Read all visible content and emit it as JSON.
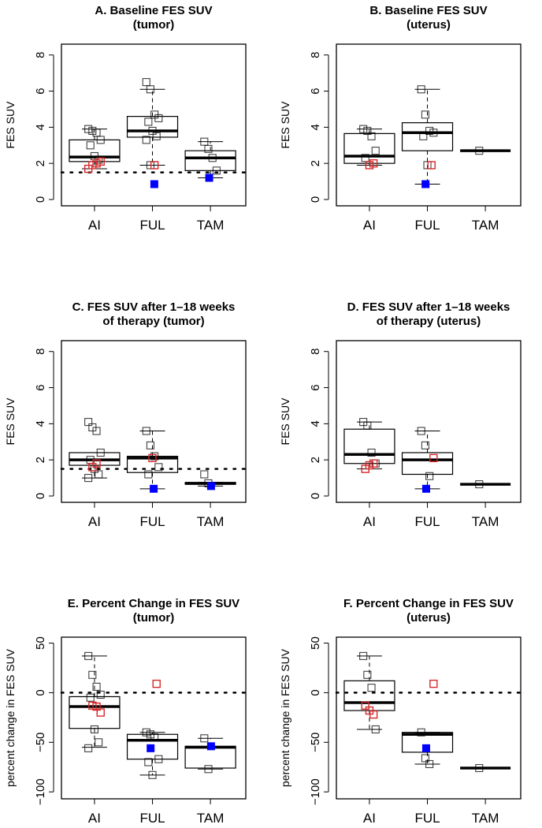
{
  "colors": {
    "default": "#000000",
    "red": "#d62728",
    "blue": "#0000ff",
    "line": "#000000"
  },
  "chart_data": [
    {
      "type": "boxplot",
      "title": [
        "A.  Baseline FES SUV",
        "(tumor)"
      ],
      "ylabel": "FES SUV",
      "ylim": [
        -0.35,
        8.6
      ],
      "yticks": [
        "0",
        "2",
        "4",
        "6",
        "8"
      ],
      "ytick_values": [
        0,
        2,
        4,
        6,
        8
      ],
      "reference_line": 1.5,
      "categories": [
        "AI",
        "FUL",
        "TAM"
      ],
      "groups": [
        {
          "box": [
            1.7,
            2.1,
            2.35,
            3.3,
            3.9
          ],
          "black": [
            3.9,
            3.8,
            3.7,
            3.3,
            3.0,
            2.4,
            2.2
          ],
          "red": [
            1.7,
            1.9,
            2.0,
            2.1
          ],
          "blue": []
        },
        {
          "box": [
            1.9,
            3.45,
            3.8,
            4.6,
            6.1
          ],
          "black": [
            6.5,
            6.1,
            4.7,
            4.5,
            4.3,
            3.8,
            3.5,
            3.3,
            1.9
          ],
          "red": [
            1.9
          ],
          "blue": [
            0.85
          ]
        },
        {
          "box": [
            1.2,
            1.6,
            2.3,
            2.7,
            3.2
          ],
          "black": [
            3.2,
            2.8,
            2.3,
            1.6
          ],
          "red": [],
          "blue": [
            1.2
          ]
        }
      ]
    },
    {
      "type": "boxplot",
      "title": [
        "B.  Baseline FES SUV",
        "(uterus)"
      ],
      "ylabel": "FES SUV",
      "ylim": [
        -0.35,
        8.6
      ],
      "yticks": [
        "0",
        "2",
        "4",
        "6",
        "8"
      ],
      "ytick_values": [
        0,
        2,
        4,
        6,
        8
      ],
      "reference_line": null,
      "categories": [
        "AI",
        "FUL",
        "TAM"
      ],
      "groups": [
        {
          "box": [
            1.9,
            2.0,
            2.4,
            3.65,
            3.9
          ],
          "black": [
            3.9,
            3.8,
            3.5,
            2.7,
            2.3
          ],
          "red": [
            1.9,
            2.0
          ],
          "blue": []
        },
        {
          "box": [
            0.85,
            2.7,
            3.7,
            4.25,
            6.1
          ],
          "black": [
            6.1,
            4.7,
            3.8,
            3.7,
            3.5,
            1.9
          ],
          "red": [
            1.9
          ],
          "blue": [
            0.85
          ]
        },
        {
          "box": [
            2.7,
            2.7,
            2.7,
            2.7,
            2.7
          ],
          "black": [
            2.7
          ],
          "red": [],
          "blue": []
        }
      ]
    },
    {
      "type": "boxplot",
      "title": [
        "C. FES SUV after 1–18 weeks",
        "of therapy (tumor)"
      ],
      "ylabel": "FES SUV",
      "ylim": [
        -0.35,
        8.6
      ],
      "yticks": [
        "0",
        "2",
        "4",
        "6",
        "8"
      ],
      "ytick_values": [
        0,
        2,
        4,
        6,
        8
      ],
      "reference_line": 1.5,
      "categories": [
        "AI",
        "FUL",
        "TAM"
      ],
      "groups": [
        {
          "box": [
            1.0,
            1.7,
            2.0,
            2.4,
            2.4
          ],
          "black": [
            4.1,
            3.8,
            3.6,
            2.4,
            2.0,
            1.5,
            1.2,
            1.0
          ],
          "red": [
            1.6,
            1.8
          ],
          "blue": []
        },
        {
          "box": [
            0.4,
            1.3,
            2.1,
            2.2,
            3.6
          ],
          "black": [
            3.6,
            2.8,
            2.2,
            1.6,
            1.2
          ],
          "red": [
            2.1
          ],
          "blue": [
            0.4
          ]
        },
        {
          "box": [
            0.55,
            0.65,
            0.7,
            0.75,
            0.75
          ],
          "black": [
            1.2,
            0.7
          ],
          "red": [],
          "blue": [
            0.55
          ]
        }
      ]
    },
    {
      "type": "boxplot",
      "title": [
        "D. FES SUV after 1–18 weeks",
        "of therapy (uterus)"
      ],
      "ylabel": "FES SUV",
      "ylim": [
        -0.35,
        8.6
      ],
      "yticks": [
        "0",
        "2",
        "4",
        "6",
        "8"
      ],
      "ytick_values": [
        0,
        2,
        4,
        6,
        8
      ],
      "reference_line": null,
      "categories": [
        "AI",
        "FUL",
        "TAM"
      ],
      "groups": [
        {
          "box": [
            1.5,
            1.8,
            2.3,
            3.7,
            4.1
          ],
          "black": [
            4.1,
            3.9,
            2.4,
            1.8
          ],
          "red": [
            1.5,
            1.7,
            1.8
          ],
          "blue": []
        },
        {
          "box": [
            0.4,
            1.2,
            2.0,
            2.4,
            3.6
          ],
          "black": [
            3.6,
            2.8,
            1.1
          ],
          "red": [
            2.1
          ],
          "blue": [
            0.4
          ]
        },
        {
          "box": [
            0.65,
            0.65,
            0.65,
            0.65,
            0.65
          ],
          "black": [
            0.65
          ],
          "red": [],
          "blue": []
        }
      ]
    },
    {
      "type": "boxplot",
      "title": [
        "E. Percent Change in FES SUV",
        "(tumor)"
      ],
      "ylabel": "percent change in FES SUV",
      "ylim": [
        -107,
        56
      ],
      "yticks": [
        "−100",
        "−50",
        "0",
        "50"
      ],
      "ytick_values": [
        -100,
        -50,
        0,
        50
      ],
      "reference_line": 0,
      "categories": [
        "AI",
        "FUL",
        "TAM"
      ],
      "groups": [
        {
          "box": [
            -55,
            -36,
            -14,
            -4,
            37
          ],
          "black": [
            37,
            18,
            6,
            -2,
            -5,
            -37,
            -50,
            -56
          ],
          "red": [
            -13,
            -14,
            -20
          ],
          "blue": []
        },
        {
          "box": [
            -83,
            -67,
            -48,
            -42,
            -40
          ],
          "black": [
            -40,
            -42,
            -45,
            -67,
            -70,
            -83
          ],
          "red": [
            9
          ],
          "blue": [
            -56
          ]
        },
        {
          "box": [
            -77,
            -76,
            -55,
            -54,
            -46
          ],
          "black": [
            -46,
            -77
          ],
          "red": [],
          "blue": [
            -54
          ]
        }
      ]
    },
    {
      "type": "boxplot",
      "title": [
        "F. Percent Change in FES SUV",
        "(uterus)"
      ],
      "ylabel": "percent change in FES SUV",
      "ylim": [
        -107,
        56
      ],
      "yticks": [
        "−100",
        "−50",
        "0",
        "50"
      ],
      "ytick_values": [
        -100,
        -50,
        0,
        50
      ],
      "reference_line": 0,
      "categories": [
        "AI",
        "FUL",
        "TAM"
      ],
      "groups": [
        {
          "box": [
            -37,
            -18,
            -10,
            12,
            37
          ],
          "black": [
            37,
            18,
            5,
            -37
          ],
          "red": [
            -13,
            -18,
            -22
          ],
          "blue": []
        },
        {
          "box": [
            -72,
            -60,
            -42,
            -40,
            -40
          ],
          "black": [
            -40,
            -66,
            -72
          ],
          "red": [
            9
          ],
          "blue": [
            -56
          ]
        },
        {
          "box": [
            -76,
            -76,
            -76,
            -76,
            -76
          ],
          "black": [
            -76
          ],
          "red": [],
          "blue": []
        }
      ]
    }
  ]
}
